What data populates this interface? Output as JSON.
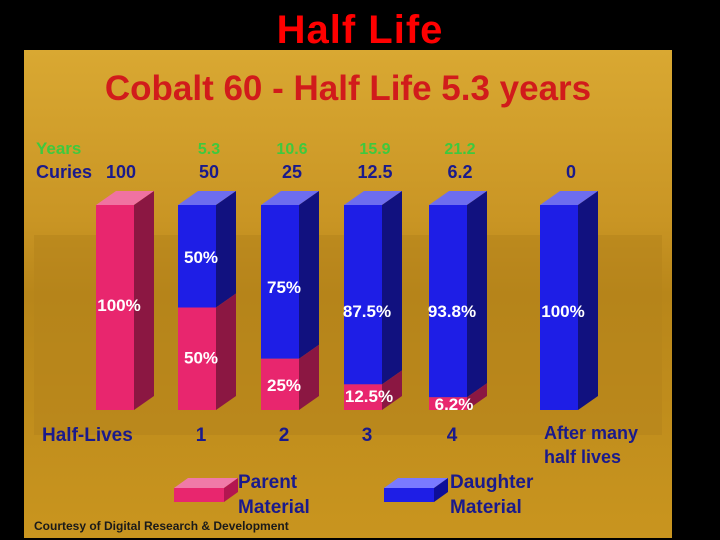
{
  "slide": {
    "title": "Half Life"
  },
  "chart_data": {
    "type": "bar",
    "stacked": true,
    "title": "Cobalt 60 - Half Life 5.3 years",
    "row_labels": {
      "years": "Years",
      "curies": "Curies",
      "half_lives": "Half-Lives"
    },
    "categories": [
      "",
      "1",
      "2",
      "3",
      "4",
      "After many half lives"
    ],
    "years": [
      "",
      "5.3",
      "10.6",
      "15.9",
      "21.2",
      ""
    ],
    "curies": [
      "100",
      "50",
      "25",
      "12.5",
      "6.2",
      "0"
    ],
    "series": [
      {
        "name": "Parent Material",
        "values": [
          100,
          50,
          25,
          12.5,
          6.2,
          0
        ],
        "labels": [
          "100%",
          "50%",
          "25%",
          "12.5%",
          "6.2%",
          ""
        ]
      },
      {
        "name": "Daughter Material",
        "values": [
          0,
          50,
          75,
          87.5,
          93.8,
          100
        ],
        "labels": [
          "",
          "50%",
          "75%",
          "87.5%",
          "93.8%",
          "100%"
        ]
      }
    ],
    "ylim": [
      0,
      100
    ],
    "colors": {
      "parent": "#e8266e",
      "daughter": "#1e1ee6",
      "background": "#c9951f",
      "title": "#d11b1b",
      "years_text": "#3ec93e",
      "label_text": "#ffffff",
      "header_text": "#1a1a8c"
    },
    "legend_position": "bottom",
    "credit": "Courtesy of Digital Research & Development"
  }
}
